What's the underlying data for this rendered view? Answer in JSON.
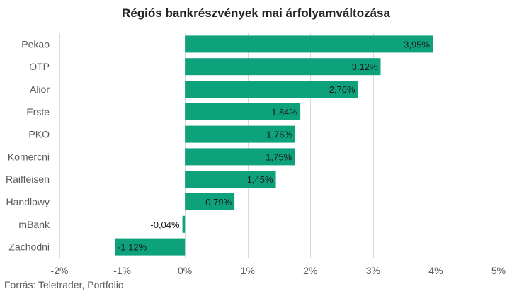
{
  "title": "Régiós bankrészvények mai árfolyamváltozása",
  "source": "Forrás: Teletrader, Portfolio",
  "colors": {
    "bar": "#0ea27c",
    "grid": "#d9d9d9",
    "text": "#595959"
  },
  "chart_data": {
    "type": "bar",
    "orientation": "horizontal",
    "title": "Régiós bankrészvények mai árfolyamváltozása",
    "xlabel": "",
    "ylabel": "",
    "xlim": [
      -2,
      5
    ],
    "x_ticks": [
      -2,
      -1,
      0,
      1,
      2,
      3,
      4,
      5
    ],
    "x_tick_labels": [
      "-2%",
      "-1%",
      "0%",
      "1%",
      "2%",
      "3%",
      "4%",
      "5%"
    ],
    "grid": "vertical",
    "legend": "none",
    "categories": [
      "Pekao",
      "OTP",
      "Alior",
      "Erste",
      "PKO",
      "Komercni",
      "Raiffeisen",
      "Handlowy",
      "mBank",
      "Zachodni"
    ],
    "values": [
      3.95,
      3.12,
      2.76,
      1.84,
      1.76,
      1.75,
      1.45,
      0.79,
      -0.04,
      -1.12
    ],
    "value_labels": [
      "3,95%",
      "3,12%",
      "2,76%",
      "1,84%",
      "1,76%",
      "1,75%",
      "1,45%",
      "0,79%",
      "-0,04%",
      "-1,12%"
    ]
  }
}
